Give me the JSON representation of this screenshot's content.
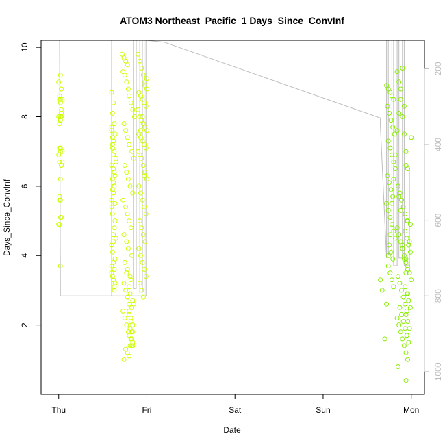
{
  "chart_data": {
    "type": "scatter",
    "title": "ATOM3 Northeast_Pacific_1 Days_Since_ConvInf",
    "xlabel": "Date",
    "ylabel": "Days_Since_ConvInf",
    "x_ticks": [
      "Thu",
      "Fri",
      "Sat",
      "Sun",
      "Mon"
    ],
    "xlim": [
      -0.2,
      4.15
    ],
    "ylim": [
      0,
      10.2
    ],
    "y_ticks": [
      2,
      4,
      6,
      8,
      10
    ],
    "y2_ticks": [
      200,
      400,
      600,
      800,
      1000
    ],
    "y2lim": [
      1060,
      125
    ],
    "grid": false,
    "colors": {
      "points_early": "#ccff00",
      "points_late": "#88ee00",
      "profile_line": "#bdbdbd"
    },
    "altitude_profile": {
      "x": [
        0.01,
        0.01,
        0.02,
        0.02,
        1.0,
        1.0,
        0.6,
        0.6,
        0.85,
        0.85,
        0.88,
        0.88,
        0.92,
        0.92,
        0.95,
        0.95,
        0.97,
        0.97,
        0.99,
        0.99,
        1.2,
        3.65,
        3.65,
        3.72,
        3.72,
        3.74,
        3.74,
        3.78,
        3.78,
        3.8,
        3.8,
        3.84,
        3.84,
        3.86,
        3.86,
        3.9,
        3.9,
        3.92,
        3.92,
        3.98,
        3.98
      ],
      "y": [
        125,
        125,
        800,
        800,
        800,
        800,
        800,
        125,
        125,
        780,
        780,
        125,
        125,
        790,
        790,
        125,
        125,
        800,
        800,
        125,
        130,
        330,
        350,
        700,
        125,
        125,
        690,
        690,
        125,
        125,
        720,
        720,
        125,
        125,
        700,
        700,
        125,
        125,
        720,
        720,
        460
      ]
    },
    "series": [
      {
        "x": [
          0.02,
          0.0,
          0.03,
          0.01,
          0.02,
          0.04,
          0.03,
          0.0,
          0.02,
          0.01,
          0.03,
          0.02,
          0.04,
          0.0,
          0.01,
          0.03,
          0.02,
          0.01,
          0.02,
          0.03,
          0.01,
          0.0,
          0.02,
          0.03,
          0.01,
          0.02,
          0.03,
          0.02,
          0.01,
          0.02,
          0.04,
          0.03,
          0.02,
          0.01,
          0.02,
          0.6,
          0.62,
          0.61,
          0.63,
          0.6,
          0.64,
          0.62,
          0.61,
          0.63,
          0.65,
          0.6,
          0.62,
          0.64,
          0.61,
          0.63,
          0.62,
          0.6,
          0.64,
          0.61,
          0.63,
          0.62,
          0.65,
          0.6,
          0.61,
          0.64,
          0.62,
          0.63,
          0.6,
          0.61,
          0.62,
          0.64,
          0.63,
          0.61,
          0.6,
          0.62,
          0.63,
          0.61,
          0.64,
          0.62,
          0.6,
          0.63,
          0.61,
          0.65,
          0.62,
          0.6,
          0.72,
          0.74,
          0.76,
          0.78,
          0.73,
          0.75,
          0.77,
          0.79,
          0.8,
          0.82,
          0.84,
          0.86,
          0.74,
          0.76,
          0.78,
          0.8,
          0.83,
          0.85,
          0.75,
          0.77,
          0.79,
          0.81,
          0.84,
          0.73,
          0.76,
          0.78,
          0.8,
          0.82,
          0.74,
          0.77,
          0.79,
          0.83,
          0.75,
          0.78,
          0.81,
          0.74,
          0.76,
          0.78,
          0.8,
          0.73,
          0.75,
          0.77,
          0.79,
          0.82,
          0.84,
          0.76,
          0.78,
          0.8,
          0.74,
          0.77,
          0.8,
          0.82,
          0.84,
          0.81,
          0.83,
          0.8,
          0.82,
          0.84,
          0.81,
          0.83,
          0.85,
          0.8,
          0.82,
          0.84,
          0.83,
          0.81,
          0.8,
          0.82,
          0.84,
          0.83,
          0.9,
          0.92,
          0.94,
          0.96,
          0.98,
          1.0,
          0.91,
          0.93,
          0.95,
          0.97,
          0.99,
          0.9,
          0.92,
          0.94,
          0.96,
          0.98,
          1.0,
          0.91,
          0.93,
          0.95,
          0.97,
          0.99,
          0.9,
          0.92,
          0.94,
          0.96,
          0.98,
          1.0,
          0.91,
          0.93,
          0.95,
          0.97,
          0.99,
          0.92,
          0.94,
          0.96,
          0.98,
          0.91,
          0.93,
          0.95,
          0.97,
          0.99,
          0.92,
          0.94,
          0.96,
          0.98,
          1.0,
          0.93,
          0.95,
          0.97
        ],
        "y": [
          9.2,
          9.0,
          8.8,
          8.6,
          8.5,
          8.5,
          8.2,
          8.0,
          7.9,
          7.8,
          8.0,
          7.1,
          7.0,
          6.9,
          6.7,
          6.6,
          6.2,
          5.7,
          5.6,
          5.1,
          4.9,
          4.9,
          3.7,
          8.8,
          8.5,
          8.0,
          8.1,
          7.9,
          7.1,
          7.0,
          6.7,
          6.6,
          5.1,
          5.6,
          8.4,
          8.7,
          8.4,
          8.1,
          7.8,
          7.6,
          7.5,
          7.3,
          7.2,
          7.0,
          6.8,
          6.6,
          6.5,
          6.3,
          6.2,
          6.0,
          5.8,
          5.6,
          5.5,
          5.2,
          4.8,
          4.6,
          4.5,
          4.3,
          4.1,
          3.9,
          3.8,
          3.6,
          3.5,
          3.4,
          3.3,
          3.2,
          3.0,
          7.4,
          7.7,
          6.9,
          6.4,
          5.9,
          5.0,
          4.4,
          3.7,
          3.1,
          7.1,
          6.7,
          6.1,
          5.4,
          9.8,
          9.7,
          9.6,
          9.5,
          9.3,
          9.2,
          9.0,
          8.8,
          8.6,
          8.4,
          8.2,
          8.0,
          7.8,
          7.6,
          7.4,
          7.2,
          7.0,
          6.8,
          6.6,
          6.4,
          6.2,
          6.0,
          5.8,
          5.6,
          5.4,
          5.2,
          5.0,
          4.8,
          4.6,
          4.4,
          4.2,
          4.0,
          3.8,
          3.6,
          3.4,
          3.2,
          3.0,
          2.8,
          2.6,
          2.4,
          2.2,
          2.0,
          1.8,
          1.6,
          1.4,
          1.3,
          1.2,
          1.1,
          1.0,
          3.5,
          2.3,
          2.2,
          2.0,
          1.9,
          1.8,
          1.7,
          1.6,
          1.5,
          1.4,
          1.4,
          2.6,
          2.4,
          2.1,
          1.8,
          1.6,
          2.9,
          3.1,
          3.3,
          2.7,
          2.5,
          9.8,
          9.6,
          9.4,
          9.2,
          9.0,
          8.8,
          8.7,
          8.6,
          8.5,
          8.4,
          8.3,
          8.2,
          8.0,
          7.9,
          7.8,
          7.7,
          7.6,
          7.5,
          7.4,
          7.3,
          7.2,
          7.1,
          7.0,
          6.9,
          6.8,
          6.6,
          6.4,
          6.2,
          6.0,
          5.8,
          5.6,
          5.4,
          5.2,
          5.0,
          4.8,
          4.6,
          4.4,
          4.2,
          4.0,
          3.8,
          3.6,
          3.4,
          3.2,
          3.0,
          2.8,
          8.9,
          9.1,
          7.6,
          8.0,
          6.3
        ]
      },
      {
        "x": [
          3.65,
          3.67,
          3.7,
          3.72,
          3.74,
          3.76,
          3.78,
          3.8,
          3.82,
          3.84,
          3.86,
          3.88,
          3.9,
          3.92,
          3.94,
          3.96,
          3.98,
          4.0,
          3.72,
          3.74,
          3.76,
          3.78,
          3.8,
          3.73,
          3.75,
          3.77,
          3.79,
          3.81,
          3.74,
          3.76,
          3.78,
          3.8,
          3.82,
          3.73,
          3.75,
          3.77,
          3.79,
          3.72,
          3.74,
          3.76,
          3.78,
          3.8,
          3.82,
          3.75,
          3.77,
          3.79,
          3.74,
          3.76,
          3.78,
          3.8,
          3.84,
          3.86,
          3.88,
          3.9,
          3.92,
          3.94,
          3.96,
          3.85,
          3.87,
          3.89,
          3.91,
          3.93,
          3.95,
          3.84,
          3.86,
          3.88,
          3.9,
          3.92,
          3.94,
          3.96,
          3.85,
          3.87,
          3.89,
          3.91,
          3.93,
          3.95,
          3.84,
          3.86,
          3.88,
          3.9,
          3.92,
          3.94,
          3.96,
          3.85,
          3.87,
          3.89,
          3.91,
          3.93,
          3.95,
          3.86,
          3.88,
          3.9,
          3.92,
          3.94,
          3.93,
          3.95,
          3.97,
          3.99,
          3.94,
          3.96,
          3.98,
          4.0,
          3.93,
          3.95,
          3.97,
          3.99,
          3.94,
          3.96,
          3.98,
          3.95,
          3.97,
          3.99,
          3.94,
          3.96
        ],
        "y": [
          3.3,
          3.0,
          1.6,
          2.6,
          4.0,
          4.6,
          5.5,
          6.2,
          6.9,
          7.6,
          8.1,
          8.8,
          9.4,
          8.3,
          6.6,
          5.0,
          4.4,
          7.4,
          8.9,
          8.8,
          8.7,
          8.6,
          8.5,
          8.3,
          8.1,
          7.9,
          7.7,
          7.5,
          7.3,
          7.1,
          6.9,
          6.7,
          6.5,
          6.3,
          6.1,
          5.9,
          5.7,
          5.5,
          5.3,
          5.1,
          4.9,
          4.7,
          4.5,
          4.3,
          4.1,
          3.9,
          3.7,
          3.5,
          3.3,
          3.1,
          9.3,
          9.0,
          8.5,
          8.0,
          7.5,
          7.0,
          6.5,
          6.0,
          5.8,
          5.6,
          5.4,
          5.2,
          5.0,
          4.8,
          4.6,
          4.4,
          4.2,
          4.0,
          3.8,
          3.6,
          3.4,
          3.2,
          3.0,
          2.8,
          2.6,
          2.4,
          2.2,
          2.0,
          1.8,
          1.6,
          1.4,
          1.2,
          1.0,
          0.8,
          2.5,
          2.3,
          2.1,
          1.9,
          1.7,
          5.7,
          5.3,
          4.3,
          3.9,
          3.5,
          4.7,
          4.5,
          4.3,
          4.1,
          3.9,
          3.7,
          3.5,
          3.3,
          3.1,
          2.9,
          2.7,
          2.5,
          2.3,
          2.1,
          1.9,
          1.7,
          1.5,
          4.9,
          0.4,
          2.9
        ]
      }
    ]
  }
}
